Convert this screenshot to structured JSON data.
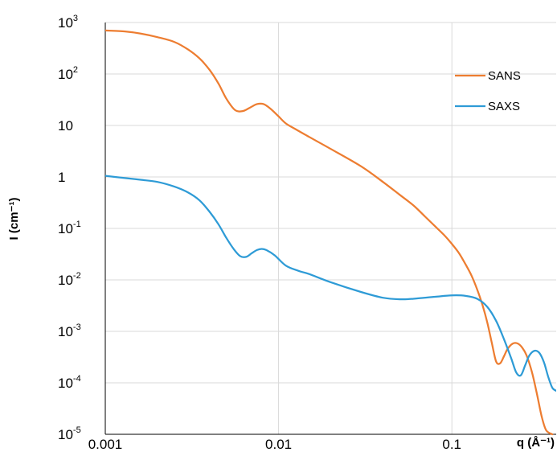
{
  "chart_data": {
    "type": "line",
    "xlabel": "q (Å⁻¹)",
    "ylabel": "I (cm⁻¹)",
    "x_scale": "log",
    "y_scale": "log",
    "xlim": [
      0.001,
      0.4
    ],
    "ylim": [
      1e-05,
      1000
    ],
    "grid": true,
    "legend_position": "top-right",
    "x_ticks": [
      {
        "value": 0.001,
        "label": "0.001"
      },
      {
        "value": 0.01,
        "label": "0.01"
      },
      {
        "value": 0.1,
        "label": "0.1"
      }
    ],
    "y_ticks": [
      {
        "value": 1000,
        "base": "10",
        "exp": "3"
      },
      {
        "value": 100,
        "base": "10",
        "exp": "2"
      },
      {
        "value": 10,
        "base": "10",
        "exp": ""
      },
      {
        "value": 1,
        "base": "1",
        "exp": ""
      },
      {
        "value": 0.1,
        "base": "10",
        "exp": "-1"
      },
      {
        "value": 0.01,
        "base": "10",
        "exp": "-2"
      },
      {
        "value": 0.001,
        "base": "10",
        "exp": "-3"
      },
      {
        "value": 0.0001,
        "base": "10",
        "exp": "-4"
      },
      {
        "value": 1e-05,
        "base": "10",
        "exp": "-5"
      }
    ],
    "series": [
      {
        "name": "SANS",
        "color": "#ED7D31",
        "points": [
          [
            0.001,
            700
          ],
          [
            0.0013,
            670
          ],
          [
            0.0016,
            610
          ],
          [
            0.002,
            520
          ],
          [
            0.0025,
            420
          ],
          [
            0.003,
            300
          ],
          [
            0.0035,
            200
          ],
          [
            0.004,
            120
          ],
          [
            0.0045,
            65
          ],
          [
            0.005,
            33
          ],
          [
            0.0056,
            20
          ],
          [
            0.0062,
            19
          ],
          [
            0.0068,
            22
          ],
          [
            0.0075,
            26
          ],
          [
            0.0082,
            26
          ],
          [
            0.009,
            21
          ],
          [
            0.01,
            15
          ],
          [
            0.011,
            11
          ],
          [
            0.0125,
            8.5
          ],
          [
            0.015,
            6
          ],
          [
            0.02,
            3.5
          ],
          [
            0.03,
            1.6
          ],
          [
            0.04,
            0.8
          ],
          [
            0.05,
            0.45
          ],
          [
            0.06,
            0.28
          ],
          [
            0.07,
            0.17
          ],
          [
            0.08,
            0.11
          ],
          [
            0.09,
            0.075
          ],
          [
            0.1,
            0.05
          ],
          [
            0.11,
            0.033
          ],
          [
            0.12,
            0.02
          ],
          [
            0.13,
            0.012
          ],
          [
            0.14,
            0.0065
          ],
          [
            0.15,
            0.0033
          ],
          [
            0.16,
            0.0015
          ],
          [
            0.17,
            0.0006
          ],
          [
            0.18,
            0.00026
          ],
          [
            0.19,
            0.00024
          ],
          [
            0.2,
            0.00033
          ],
          [
            0.21,
            0.00046
          ],
          [
            0.225,
            0.00058
          ],
          [
            0.24,
            0.00058
          ],
          [
            0.255,
            0.00048
          ],
          [
            0.27,
            0.00034
          ],
          [
            0.29,
            0.00016
          ],
          [
            0.31,
            6e-05
          ],
          [
            0.33,
            2.2e-05
          ],
          [
            0.35,
            1.2e-05
          ],
          [
            0.38,
            1e-05
          ]
        ]
      },
      {
        "name": "SAXS",
        "color": "#2E9BD6",
        "points": [
          [
            0.001,
            1.05
          ],
          [
            0.0013,
            0.95
          ],
          [
            0.0016,
            0.88
          ],
          [
            0.002,
            0.8
          ],
          [
            0.0025,
            0.65
          ],
          [
            0.003,
            0.5
          ],
          [
            0.0035,
            0.35
          ],
          [
            0.004,
            0.21
          ],
          [
            0.0045,
            0.12
          ],
          [
            0.005,
            0.065
          ],
          [
            0.0055,
            0.04
          ],
          [
            0.006,
            0.029
          ],
          [
            0.0065,
            0.028
          ],
          [
            0.007,
            0.033
          ],
          [
            0.0075,
            0.038
          ],
          [
            0.008,
            0.04
          ],
          [
            0.0085,
            0.038
          ],
          [
            0.0095,
            0.03
          ],
          [
            0.011,
            0.019
          ],
          [
            0.013,
            0.015
          ],
          [
            0.015,
            0.013
          ],
          [
            0.02,
            0.009
          ],
          [
            0.03,
            0.0058
          ],
          [
            0.04,
            0.0045
          ],
          [
            0.05,
            0.0042
          ],
          [
            0.06,
            0.0043
          ],
          [
            0.08,
            0.0047
          ],
          [
            0.1,
            0.005
          ],
          [
            0.12,
            0.0049
          ],
          [
            0.14,
            0.0043
          ],
          [
            0.16,
            0.003
          ],
          [
            0.18,
            0.0016
          ],
          [
            0.2,
            0.0007
          ],
          [
            0.22,
            0.0003
          ],
          [
            0.235,
            0.00016
          ],
          [
            0.25,
            0.00014
          ],
          [
            0.265,
            0.00022
          ],
          [
            0.28,
            0.00034
          ],
          [
            0.3,
            0.00042
          ],
          [
            0.32,
            0.00038
          ],
          [
            0.34,
            0.00025
          ],
          [
            0.36,
            0.00013
          ],
          [
            0.38,
            8e-05
          ],
          [
            0.4,
            7e-05
          ]
        ]
      }
    ]
  }
}
